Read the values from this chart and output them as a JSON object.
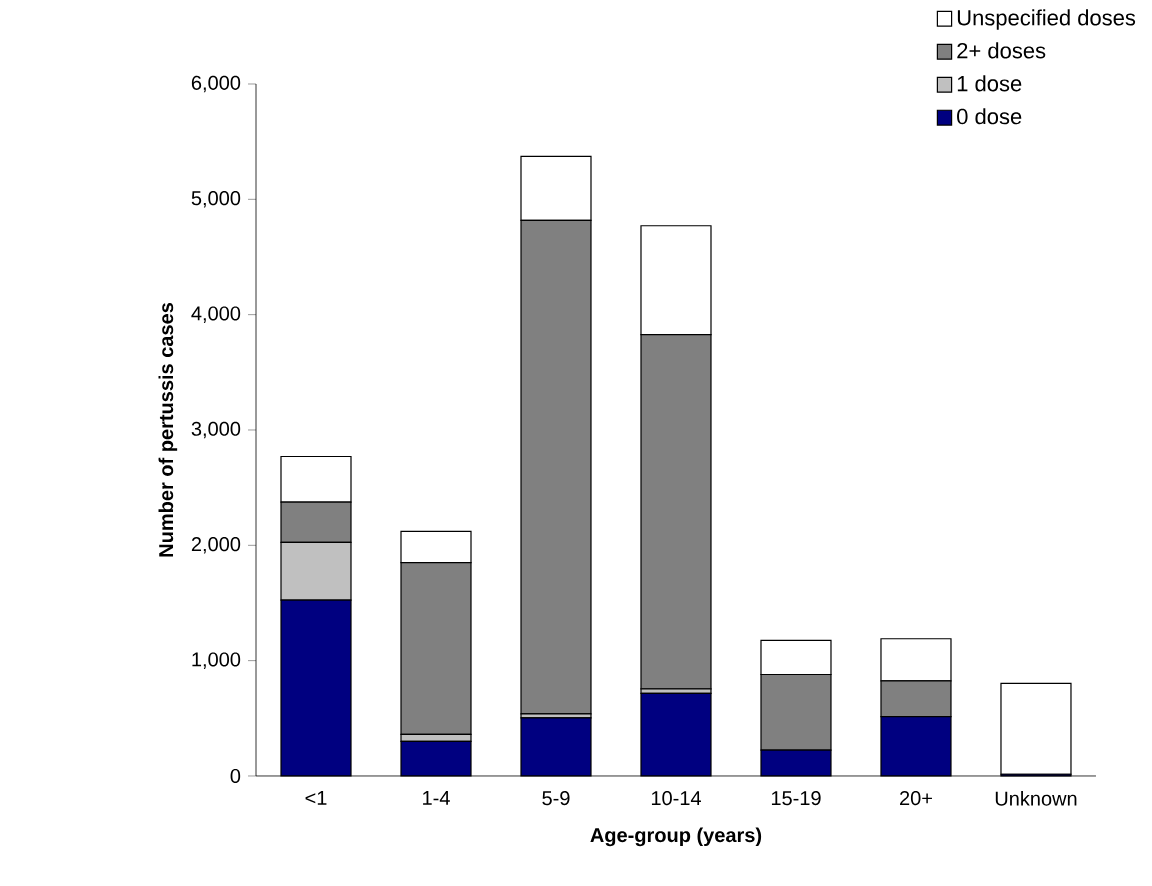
{
  "chart_data": {
    "type": "bar",
    "stacked": true,
    "xlabel": "Age-group (years)",
    "ylabel": "Number of pertussis cases",
    "categories": [
      "<1",
      "1-4",
      "5-9",
      "10-14",
      "15-19",
      "20+",
      "Unknown"
    ],
    "series": [
      {
        "name": "0 dose",
        "color": "#000080",
        "values": [
          1525,
          300,
          503,
          716,
          225,
          515,
          15
        ]
      },
      {
        "name": "1 dose",
        "color": "#c0c0c0",
        "values": [
          500,
          60,
          35,
          40,
          0,
          0,
          0
        ]
      },
      {
        "name": "2+ doses",
        "color": "#808080",
        "values": [
          350,
          1490,
          4280,
          3070,
          655,
          310,
          0
        ]
      },
      {
        "name": "Unspecified doses",
        "color": "#ffffff",
        "values": [
          395,
          270,
          555,
          945,
          295,
          365,
          787
        ]
      }
    ],
    "ylim": [
      0,
      6000
    ],
    "yticks": [
      {
        "value": 0,
        "label": "0"
      },
      {
        "value": 1000,
        "label": "1,000"
      },
      {
        "value": 2000,
        "label": "2,000"
      },
      {
        "value": 3000,
        "label": "3,000"
      },
      {
        "value": 4000,
        "label": "4,000"
      },
      {
        "value": 5000,
        "label": "5,000"
      },
      {
        "value": 6000,
        "label": "6,000"
      }
    ],
    "legend": "top right",
    "grid": false
  }
}
